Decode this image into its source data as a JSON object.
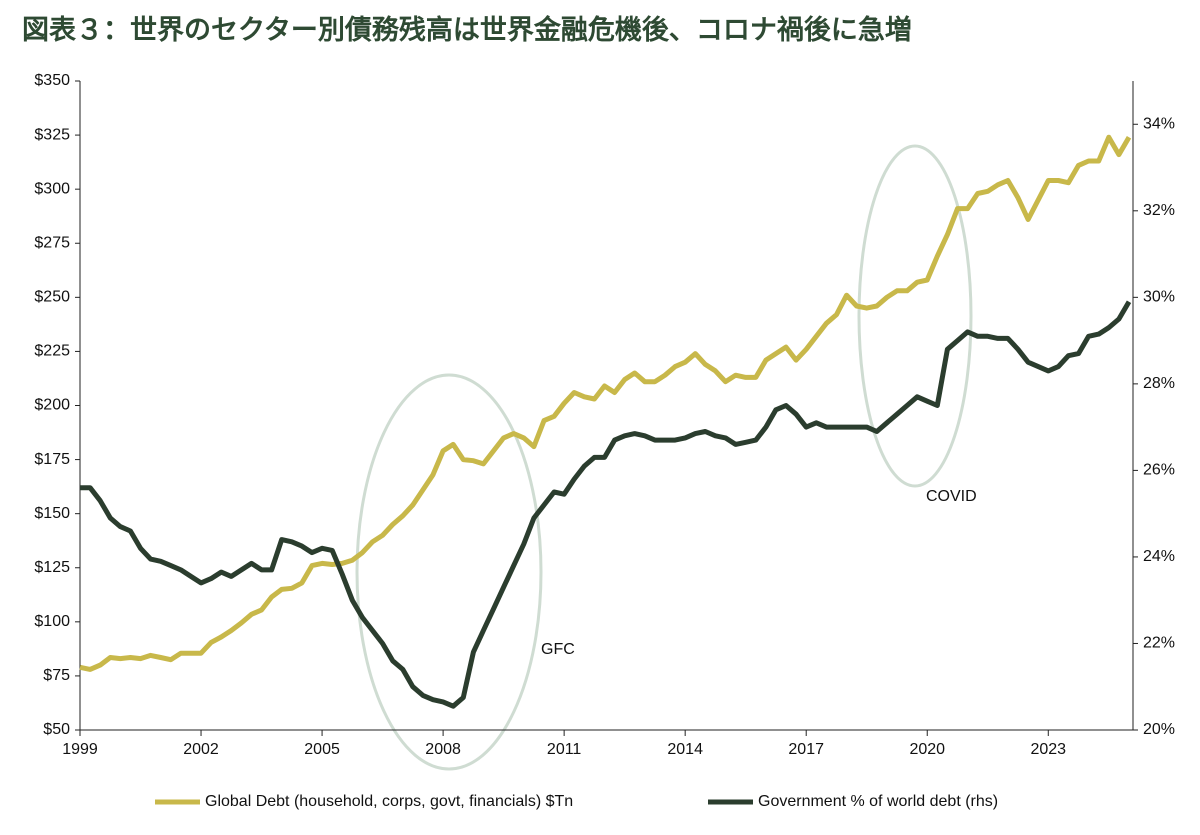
{
  "chart_data": {
    "type": "line",
    "title": "図表３：世界のセクター別債務残高は世界金融危機後、コロナ禍後に急増",
    "x": [
      1999,
      1999.25,
      1999.5,
      1999.75,
      2000,
      2000.25,
      2000.5,
      2000.75,
      2001,
      2001.25,
      2001.5,
      2001.75,
      2002,
      2002.25,
      2002.5,
      2002.75,
      2003,
      2003.25,
      2003.5,
      2003.75,
      2004,
      2004.25,
      2004.5,
      2004.75,
      2005,
      2005.25,
      2005.5,
      2005.75,
      2006,
      2006.25,
      2006.5,
      2006.75,
      2007,
      2007.25,
      2007.5,
      2007.75,
      2008,
      2008.25,
      2008.5,
      2008.75,
      2009,
      2009.25,
      2009.5,
      2009.75,
      2010,
      2010.25,
      2010.5,
      2010.75,
      2011,
      2011.25,
      2011.5,
      2011.75,
      2012,
      2012.25,
      2012.5,
      2012.75,
      2013,
      2013.25,
      2013.5,
      2013.75,
      2014,
      2014.25,
      2014.5,
      2014.75,
      2015,
      2015.25,
      2015.5,
      2015.75,
      2016,
      2016.25,
      2016.5,
      2016.75,
      2017,
      2017.25,
      2017.5,
      2017.75,
      2018,
      2018.25,
      2018.5,
      2018.75,
      2019,
      2019.25,
      2019.5,
      2019.75,
      2020,
      2020.25,
      2020.5,
      2020.75,
      2021,
      2021.25,
      2021.5,
      2021.75,
      2022,
      2022.25,
      2022.5,
      2022.75,
      2023,
      2023.25,
      2023.5,
      2023.75,
      2024,
      2024.25,
      2024.5,
      2024.75,
      2025
    ],
    "series": [
      {
        "name": "Global Debt (household, corps, govt, financials) $Tn",
        "color": "#c8b84a",
        "values": [
          79,
          78,
          80,
          83.5,
          83,
          83.5,
          83,
          84.5,
          83.5,
          82.5,
          85.5,
          85.5,
          85.5,
          90.5,
          93,
          96,
          99.5,
          103.5,
          105.5,
          111.5,
          115,
          115.5,
          118,
          126,
          127,
          126.5,
          127,
          128.5,
          132,
          137,
          140,
          145,
          149,
          154,
          161,
          168,
          179,
          182,
          175,
          174.5,
          173,
          179,
          185,
          187,
          185,
          181,
          193,
          195,
          201,
          206,
          204,
          203,
          209,
          206,
          212,
          215,
          211,
          211,
          214,
          218,
          220,
          224,
          219,
          216,
          211,
          214,
          213,
          213,
          221,
          224,
          227,
          221,
          226,
          232,
          238,
          242,
          251,
          246,
          245,
          246,
          250,
          253,
          253,
          257,
          258,
          269,
          279,
          291,
          291,
          298,
          299,
          302,
          304,
          296,
          286,
          295,
          304,
          304,
          303,
          311,
          313,
          313,
          324,
          316,
          324
        ]
      },
      {
        "name": "Government % of world debt (rhs)",
        "color": "#2b3d2e",
        "axis": "y2",
        "values": [
          25.6,
          25.6,
          25.3,
          24.9,
          24.7,
          24.6,
          24.2,
          23.95,
          23.9,
          23.8,
          23.7,
          23.55,
          23.4,
          23.5,
          23.65,
          23.55,
          23.7,
          23.85,
          23.7,
          23.7,
          24.4,
          24.35,
          24.25,
          24.1,
          24.2,
          24.15,
          23.6,
          23.0,
          22.6,
          22.3,
          22.0,
          21.6,
          21.4,
          21.0,
          20.8,
          20.7,
          20.65,
          20.55,
          20.75,
          21.8,
          22.3,
          22.8,
          23.3,
          23.8,
          24.3,
          24.9,
          25.2,
          25.5,
          25.45,
          25.8,
          26.1,
          26.3,
          26.3,
          26.7,
          26.8,
          26.85,
          26.8,
          26.7,
          26.7,
          26.7,
          26.75,
          26.85,
          26.9,
          26.8,
          26.75,
          26.6,
          26.65,
          26.7,
          27.0,
          27.4,
          27.5,
          27.3,
          27.0,
          27.1,
          27.0,
          27.0,
          27.0,
          27.0,
          27.0,
          26.9,
          27.1,
          27.3,
          27.5,
          27.7,
          27.6,
          27.5,
          28.8,
          29.0,
          29.2,
          29.1,
          29.1,
          29.05,
          29.05,
          28.8,
          28.5,
          28.4,
          28.3,
          28.4,
          28.65,
          28.7,
          29.1,
          29.15,
          29.3,
          29.5,
          29.9
        ]
      }
    ],
    "xlim": [
      1999,
      2025.1
    ],
    "xticks": [
      1999,
      2002,
      2005,
      2008,
      2011,
      2014,
      2017,
      2020,
      2023
    ],
    "ylim": [
      50,
      350
    ],
    "yticks": [
      {
        "value": 50,
        "label": "$50"
      },
      {
        "value": 75,
        "label": "$75"
      },
      {
        "value": 100,
        "label": "$100"
      },
      {
        "value": 125,
        "label": "$125"
      },
      {
        "value": 150,
        "label": "$150"
      },
      {
        "value": 175,
        "label": "$175"
      },
      {
        "value": 200,
        "label": "$200"
      },
      {
        "value": 225,
        "label": "$225"
      },
      {
        "value": 250,
        "label": "$250"
      },
      {
        "value": 275,
        "label": "$275"
      },
      {
        "value": 300,
        "label": "$300"
      },
      {
        "value": 325,
        "label": "$325"
      },
      {
        "value": 350,
        "label": "$350"
      }
    ],
    "y2lim": [
      20,
      35
    ],
    "y2ticks": [
      {
        "value": 20,
        "label": "20%"
      },
      {
        "value": 22,
        "label": "22%"
      },
      {
        "value": 24,
        "label": "24%"
      },
      {
        "value": 26,
        "label": "26%"
      },
      {
        "value": 28,
        "label": "28%"
      },
      {
        "value": 30,
        "label": "30%"
      },
      {
        "value": 32,
        "label": "32%"
      },
      {
        "value": 34,
        "label": "34%"
      }
    ],
    "annotations": [
      "GFC",
      "COVID"
    ],
    "legend": "bottom"
  }
}
